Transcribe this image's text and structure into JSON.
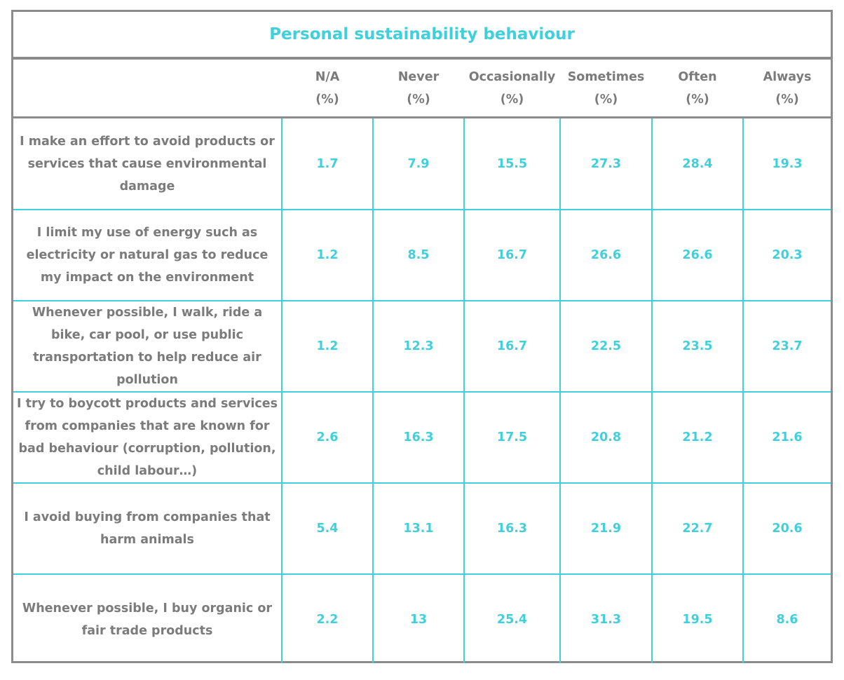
{
  "chart_data": {
    "type": "table",
    "title": "Personal sustainability behaviour",
    "columns": [
      [
        "N/A",
        "(%)"
      ],
      [
        "Never",
        "(%)"
      ],
      [
        "Occasionally",
        "(%)"
      ],
      [
        "Sometimes",
        "(%)"
      ],
      [
        "Often",
        "(%)"
      ],
      [
        "Always",
        "(%)"
      ]
    ],
    "rows": [
      {
        "label_lines": [
          "I make an effort to avoid products or",
          "services that cause environmental",
          "damage"
        ],
        "values": [
          "1.7",
          "7.9",
          "15.5",
          "27.3",
          "28.4",
          "19.3"
        ]
      },
      {
        "label_lines": [
          "I limit my use of energy such as",
          "electricity or natural gas to reduce",
          "my impact on the environment"
        ],
        "values": [
          "1.2",
          "8.5",
          "16.7",
          "26.6",
          "26.6",
          "20.3"
        ]
      },
      {
        "label_lines": [
          "Whenever possible, I walk, ride a",
          "bike, car pool, or use public",
          "transportation to help reduce air",
          "pollution"
        ],
        "values": [
          "1.2",
          "12.3",
          "16.7",
          "22.5",
          "23.5",
          "23.7"
        ]
      },
      {
        "label_lines": [
          "I try to boycott products and services",
          "from companies that are known for",
          "bad behaviour (corruption, pollution,",
          "child labour…)"
        ],
        "values": [
          "2.6",
          "16.3",
          "17.5",
          "20.8",
          "21.2",
          "21.6"
        ]
      },
      {
        "label_lines": [
          "I avoid buying from companies that",
          "harm animals"
        ],
        "values": [
          "5.4",
          "13.1",
          "16.3",
          "21.9",
          "22.7",
          "20.6"
        ]
      },
      {
        "label_lines": [
          "Whenever possible, I buy organic or",
          "fair trade products"
        ],
        "values": [
          "2.2",
          "13",
          "25.4",
          "31.3",
          "19.5",
          "8.6"
        ]
      }
    ]
  }
}
